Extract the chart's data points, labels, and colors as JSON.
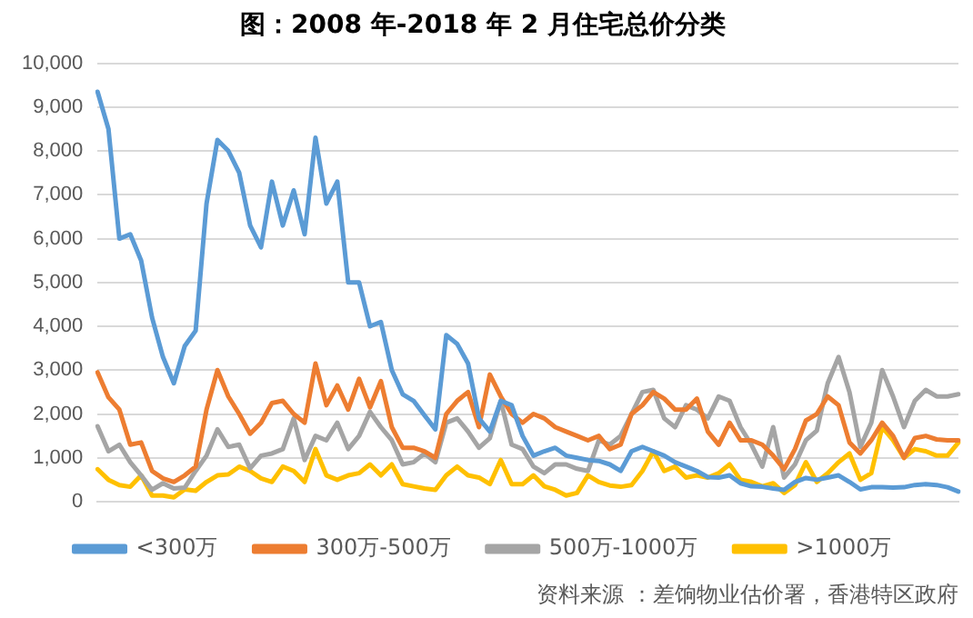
{
  "chart_data": {
    "type": "line",
    "title": "图：2008 年-2018 年 2 月住宅总价分类",
    "categories": [
      null,
      null,
      null,
      null,
      null,
      null,
      null,
      null,
      null,
      null,
      null,
      null,
      null,
      null,
      null,
      null,
      null,
      null,
      null,
      null,
      null,
      null,
      null,
      null,
      null,
      null,
      null,
      null,
      null,
      null,
      null,
      null,
      null,
      null,
      null,
      null,
      null,
      null,
      null,
      null,
      null,
      null,
      null,
      null,
      null,
      null,
      null,
      null,
      null,
      null,
      null,
      null,
      null,
      null,
      null,
      null,
      null,
      null,
      null,
      null,
      null,
      null,
      null,
      null,
      null,
      null,
      null,
      null,
      null,
      null,
      null,
      null,
      null,
      null,
      null,
      null,
      null,
      null,
      null,
      null
    ],
    "series": [
      {
        "name": "<300万",
        "color": "#5b9bd5",
        "values": [
          9350,
          8500,
          6000,
          6100,
          5500,
          4200,
          3300,
          2700,
          3550,
          3900,
          6800,
          8250,
          8000,
          7500,
          6300,
          5800,
          7300,
          6300,
          7100,
          6100,
          8300,
          6800,
          7300,
          5000,
          5000,
          4000,
          4100,
          3000,
          2450,
          2300,
          1970,
          1650,
          3800,
          3600,
          3150,
          1900,
          1600,
          2300,
          2200,
          1500,
          1050,
          1150,
          1230,
          1050,
          1000,
          950,
          930,
          850,
          700,
          1150,
          1250,
          1150,
          1050,
          900,
          800,
          700,
          560,
          550,
          600,
          420,
          350,
          340,
          300,
          270,
          450,
          540,
          500,
          550,
          600,
          450,
          280,
          330,
          330,
          320,
          330,
          380,
          400,
          380,
          330,
          230
        ]
      },
      {
        "name": "300万-500万",
        "color": "#ed7d31",
        "values": [
          2950,
          2380,
          2100,
          1300,
          1350,
          700,
          530,
          450,
          600,
          800,
          2100,
          3000,
          2400,
          2000,
          1550,
          1800,
          2250,
          2300,
          2000,
          1800,
          3150,
          2200,
          2650,
          2100,
          2800,
          2150,
          2750,
          1700,
          1230,
          1230,
          1150,
          1000,
          2000,
          2300,
          2500,
          1700,
          2900,
          2400,
          2000,
          1800,
          2000,
          1900,
          1700,
          1600,
          1500,
          1400,
          1500,
          1200,
          1300,
          2000,
          2200,
          2500,
          2350,
          2100,
          2100,
          2350,
          1600,
          1300,
          1800,
          1400,
          1400,
          1300,
          1050,
          740,
          1200,
          1850,
          2000,
          2400,
          2200,
          1350,
          1100,
          1400,
          1800,
          1500,
          1000,
          1450,
          1500,
          1420,
          1400,
          1400
        ]
      },
      {
        "name": "500万-1000万",
        "color": "#a5a5a5",
        "values": [
          1720,
          1150,
          1300,
          900,
          600,
          270,
          420,
          300,
          320,
          700,
          1050,
          1650,
          1250,
          1300,
          760,
          1050,
          1100,
          1200,
          1900,
          950,
          1500,
          1400,
          1800,
          1200,
          1500,
          2050,
          1700,
          1400,
          850,
          900,
          1100,
          900,
          1800,
          1900,
          1600,
          1230,
          1450,
          2300,
          1300,
          1200,
          800,
          650,
          850,
          850,
          750,
          700,
          1400,
          1300,
          1500,
          2000,
          2500,
          2550,
          1900,
          1700,
          2200,
          2100,
          1900,
          2400,
          2300,
          1700,
          1300,
          800,
          1700,
          550,
          850,
          1400,
          1620,
          2700,
          3300,
          2500,
          1250,
          1800,
          3000,
          2400,
          1700,
          2300,
          2550,
          2400,
          2400,
          2450
        ]
      },
      {
        "name": ">1000万",
        "color": "#ffc000",
        "values": [
          740,
          500,
          380,
          340,
          600,
          140,
          140,
          100,
          280,
          250,
          450,
          600,
          620,
          800,
          700,
          530,
          450,
          800,
          700,
          450,
          1200,
          600,
          500,
          600,
          650,
          850,
          600,
          850,
          400,
          350,
          300,
          270,
          600,
          800,
          600,
          550,
          400,
          950,
          400,
          400,
          600,
          350,
          270,
          140,
          200,
          600,
          450,
          370,
          340,
          380,
          700,
          1150,
          700,
          800,
          550,
          600,
          550,
          650,
          850,
          500,
          450,
          350,
          420,
          200,
          380,
          900,
          450,
          650,
          900,
          1100,
          500,
          650,
          1700,
          1400,
          1000,
          1200,
          1150,
          1050,
          1050,
          1350
        ]
      }
    ],
    "ylim": [
      0,
      10000
    ],
    "yticks": [
      {
        "value": 0,
        "label": "0"
      },
      {
        "value": 1000,
        "label": "1,000"
      },
      {
        "value": 2000,
        "label": "2,000"
      },
      {
        "value": 3000,
        "label": "3,000"
      },
      {
        "value": 4000,
        "label": "4,000"
      },
      {
        "value": 5000,
        "label": "5,000"
      },
      {
        "value": 6000,
        "label": "6,000"
      },
      {
        "value": 7000,
        "label": "7,000"
      },
      {
        "value": 8000,
        "label": "8,000"
      },
      {
        "value": 9000,
        "label": "9,000"
      },
      {
        "value": 10000,
        "label": "10,000"
      }
    ],
    "grid": "y",
    "legend": "bottom",
    "marker": "none",
    "line_style": "solid",
    "tick_labels": "y",
    "annotations": [
      "资料来源 ：差饷物业估价署，香港特区政府"
    ]
  }
}
